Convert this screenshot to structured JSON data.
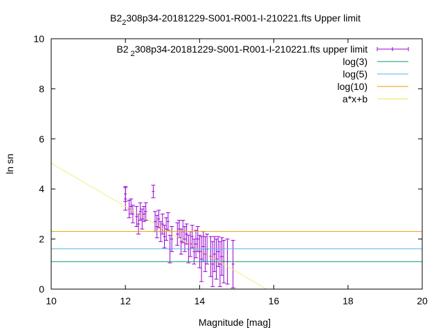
{
  "chart_data": {
    "type": "scatter",
    "title": {
      "prefix": "B2",
      "subscript": "2",
      "rest": "308p34-20181229-S001-R001-I-210221.fts Upper limit"
    },
    "xlabel": "Magnitude [mag]",
    "ylabel": "ln sn",
    "xlim": [
      10,
      20
    ],
    "ylim": [
      0,
      10
    ],
    "xticks": [
      "10",
      "12",
      "14",
      "16",
      "18",
      "20"
    ],
    "yticks": [
      "0",
      "2",
      "4",
      "6",
      "8",
      "10"
    ],
    "grid": false,
    "legend_placement": "top-right",
    "colors": {
      "data": "#9400d3",
      "log3": "#009e73",
      "log5": "#56b4e9",
      "log10": "#e69f00",
      "fit": "#f0e442"
    },
    "series": [
      {
        "name": {
          "prefix": "B2",
          "subscript": "2",
          "rest": "308p34-20181229-S001-R001-I-210221.fts upper limit"
        },
        "kind": "errorbars",
        "points": [
          [
            12.0,
            3.6,
            0.45
          ],
          [
            12.0,
            3.8,
            0.3
          ],
          [
            12.1,
            3.2,
            0.35
          ],
          [
            12.15,
            3.3,
            0.3
          ],
          [
            12.2,
            3.0,
            0.35
          ],
          [
            12.3,
            2.9,
            0.4
          ],
          [
            12.35,
            2.6,
            0.4
          ],
          [
            12.4,
            3.1,
            0.35
          ],
          [
            12.45,
            2.8,
            0.4
          ],
          [
            12.5,
            3.0,
            0.3
          ],
          [
            12.55,
            3.1,
            0.35
          ],
          [
            12.75,
            3.9,
            0.25
          ],
          [
            12.8,
            2.7,
            0.4
          ],
          [
            12.85,
            2.5,
            0.45
          ],
          [
            12.9,
            2.8,
            0.35
          ],
          [
            12.95,
            2.3,
            0.4
          ],
          [
            13.0,
            2.6,
            0.4
          ],
          [
            13.05,
            2.1,
            0.45
          ],
          [
            13.1,
            2.4,
            0.45
          ],
          [
            13.15,
            2.7,
            0.35
          ],
          [
            13.2,
            1.6,
            0.55
          ],
          [
            13.25,
            2.0,
            0.5
          ],
          [
            13.4,
            2.2,
            0.45
          ],
          [
            13.45,
            2.4,
            0.35
          ],
          [
            13.5,
            1.9,
            0.5
          ],
          [
            13.55,
            2.3,
            0.45
          ],
          [
            13.6,
            2.0,
            0.5
          ],
          [
            13.65,
            2.2,
            0.4
          ],
          [
            13.7,
            1.6,
            0.55
          ],
          [
            13.75,
            1.8,
            0.5
          ],
          [
            13.8,
            2.1,
            0.45
          ],
          [
            13.85,
            1.5,
            0.5
          ],
          [
            13.9,
            1.8,
            0.55
          ],
          [
            13.95,
            2.0,
            0.5
          ],
          [
            14.0,
            1.5,
            0.65
          ],
          [
            14.05,
            1.2,
            0.9
          ],
          [
            14.1,
            1.7,
            0.6
          ],
          [
            14.15,
            1.4,
            0.7
          ],
          [
            14.2,
            1.6,
            0.6
          ],
          [
            14.3,
            1.3,
            0.8
          ],
          [
            14.35,
            1.0,
            0.9
          ],
          [
            14.4,
            1.4,
            0.7
          ],
          [
            14.45,
            1.2,
            0.8
          ],
          [
            14.5,
            1.5,
            0.6
          ],
          [
            14.55,
            1.0,
            0.9
          ],
          [
            14.6,
            1.3,
            0.75
          ],
          [
            14.65,
            1.1,
            0.85
          ],
          [
            14.75,
            1.1,
            0.9
          ],
          [
            14.9,
            1.0,
            0.95
          ]
        ]
      },
      {
        "name": "log(3)",
        "kind": "hline",
        "value": 1.0986
      },
      {
        "name": "log(5)",
        "kind": "hline",
        "value": 1.6094
      },
      {
        "name": "log(10)",
        "kind": "hline",
        "value": 2.3026
      },
      {
        "name": "a*x+b",
        "kind": "line",
        "slope": -0.867,
        "intercept": 13.7
      }
    ]
  }
}
